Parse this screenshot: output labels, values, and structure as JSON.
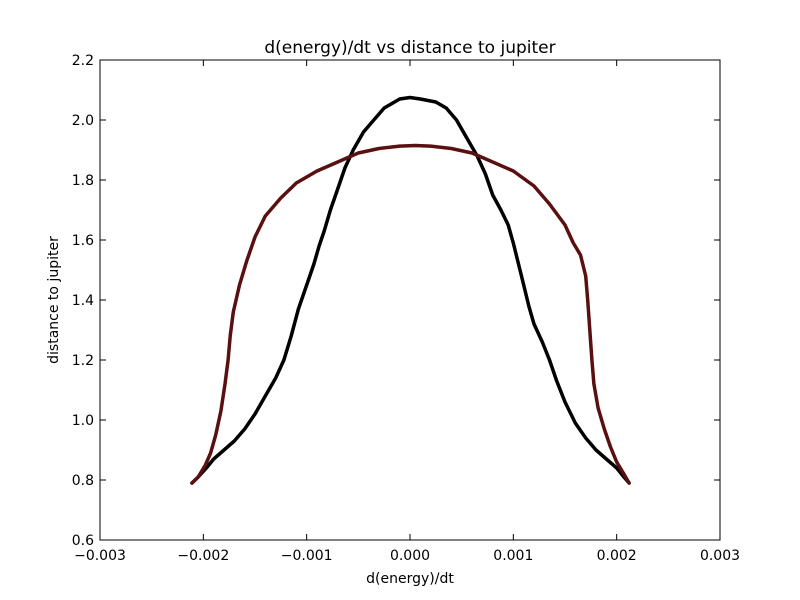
{
  "chart_data": {
    "type": "line",
    "title": "d(energy)/dt vs distance to jupiter",
    "xlabel": "d(energy)/dt",
    "ylabel": "distance to jupiter",
    "xlim": [
      -0.003,
      0.003
    ],
    "ylim": [
      0.6,
      2.2
    ],
    "x_ticks": [
      -0.003,
      -0.002,
      -0.001,
      0.0,
      0.001,
      0.002,
      0.003
    ],
    "x_tick_labels": [
      "−0.003",
      "−0.002",
      "−0.001",
      "0.000",
      "0.001",
      "0.002",
      "0.003"
    ],
    "y_ticks": [
      0.6,
      0.8,
      1.0,
      1.2,
      1.4,
      1.6,
      1.8,
      2.0,
      2.2
    ],
    "y_tick_labels": [
      "0.6",
      "0.8",
      "1.0",
      "1.2",
      "1.4",
      "1.6",
      "1.8",
      "2.0",
      "2.2"
    ],
    "grid": false,
    "legend": "none",
    "line_colors": [
      "#000000",
      "#5a1010"
    ],
    "series": [
      {
        "points": [
          [
            -0.00211,
            0.79
          ],
          [
            -0.00205,
            0.81
          ],
          [
            -0.00197,
            0.84
          ],
          [
            -0.0019,
            0.87
          ],
          [
            -0.0018,
            0.9
          ],
          [
            -0.0017,
            0.93
          ],
          [
            -0.0016,
            0.97
          ],
          [
            -0.0015,
            1.02
          ],
          [
            -0.0014,
            1.08
          ],
          [
            -0.0013,
            1.14
          ],
          [
            -0.00122,
            1.2
          ],
          [
            -0.00115,
            1.28
          ],
          [
            -0.00108,
            1.37
          ],
          [
            -0.001,
            1.45
          ],
          [
            -0.00093,
            1.52
          ],
          [
            -0.00088,
            1.58
          ],
          [
            -0.00083,
            1.63
          ],
          [
            -0.00077,
            1.7
          ],
          [
            -0.0007,
            1.77
          ],
          [
            -0.00063,
            1.84
          ],
          [
            -0.00055,
            1.9
          ],
          [
            -0.00045,
            1.96
          ],
          [
            -0.00035,
            2.0
          ],
          [
            -0.00025,
            2.04
          ],
          [
            -0.0001,
            2.07
          ],
          [
            0.0,
            2.075
          ],
          [
            0.0001,
            2.07
          ],
          [
            0.00025,
            2.06
          ],
          [
            0.00035,
            2.04
          ],
          [
            0.00045,
            2.0
          ],
          [
            0.00055,
            1.94
          ],
          [
            0.00065,
            1.88
          ],
          [
            0.00073,
            1.82
          ],
          [
            0.0008,
            1.75
          ],
          [
            0.00088,
            1.7
          ],
          [
            0.00095,
            1.65
          ],
          [
            0.001,
            1.59
          ],
          [
            0.00105,
            1.52
          ],
          [
            0.0011,
            1.45
          ],
          [
            0.00115,
            1.38
          ],
          [
            0.0012,
            1.32
          ],
          [
            0.00128,
            1.26
          ],
          [
            0.00135,
            1.2
          ],
          [
            0.00142,
            1.13
          ],
          [
            0.0015,
            1.06
          ],
          [
            0.0016,
            0.99
          ],
          [
            0.0017,
            0.94
          ],
          [
            0.0018,
            0.9
          ],
          [
            0.0019,
            0.87
          ],
          [
            0.002,
            0.84
          ],
          [
            0.00207,
            0.81
          ],
          [
            0.00212,
            0.79
          ]
        ]
      },
      {
        "points": [
          [
            -0.00211,
            0.79
          ],
          [
            -0.00205,
            0.81
          ],
          [
            -0.00198,
            0.85
          ],
          [
            -0.00193,
            0.89
          ],
          [
            -0.00188,
            0.95
          ],
          [
            -0.00183,
            1.03
          ],
          [
            -0.00179,
            1.12
          ],
          [
            -0.00176,
            1.2
          ],
          [
            -0.00174,
            1.28
          ],
          [
            -0.00171,
            1.36
          ],
          [
            -0.00165,
            1.45
          ],
          [
            -0.00158,
            1.53
          ],
          [
            -0.0015,
            1.61
          ],
          [
            -0.0014,
            1.68
          ],
          [
            -0.00125,
            1.74
          ],
          [
            -0.0011,
            1.79
          ],
          [
            -0.0009,
            1.83
          ],
          [
            -0.0007,
            1.86
          ],
          [
            -0.0005,
            1.89
          ],
          [
            -0.0003,
            1.905
          ],
          [
            -0.0001,
            1.913
          ],
          [
            5e-05,
            1.915
          ],
          [
            0.0002,
            1.913
          ],
          [
            0.0004,
            1.905
          ],
          [
            0.0006,
            1.89
          ],
          [
            0.0008,
            1.86
          ],
          [
            0.001,
            1.83
          ],
          [
            0.0012,
            1.78
          ],
          [
            0.00135,
            1.72
          ],
          [
            0.0015,
            1.65
          ],
          [
            0.00158,
            1.59
          ],
          [
            0.00165,
            1.55
          ],
          [
            0.0017,
            1.48
          ],
          [
            0.00172,
            1.4
          ],
          [
            0.00174,
            1.3
          ],
          [
            0.00176,
            1.2
          ],
          [
            0.00178,
            1.12
          ],
          [
            0.00182,
            1.04
          ],
          [
            0.00188,
            0.97
          ],
          [
            0.00194,
            0.91
          ],
          [
            0.002,
            0.86
          ],
          [
            0.00207,
            0.82
          ],
          [
            0.00212,
            0.79
          ]
        ]
      }
    ]
  }
}
